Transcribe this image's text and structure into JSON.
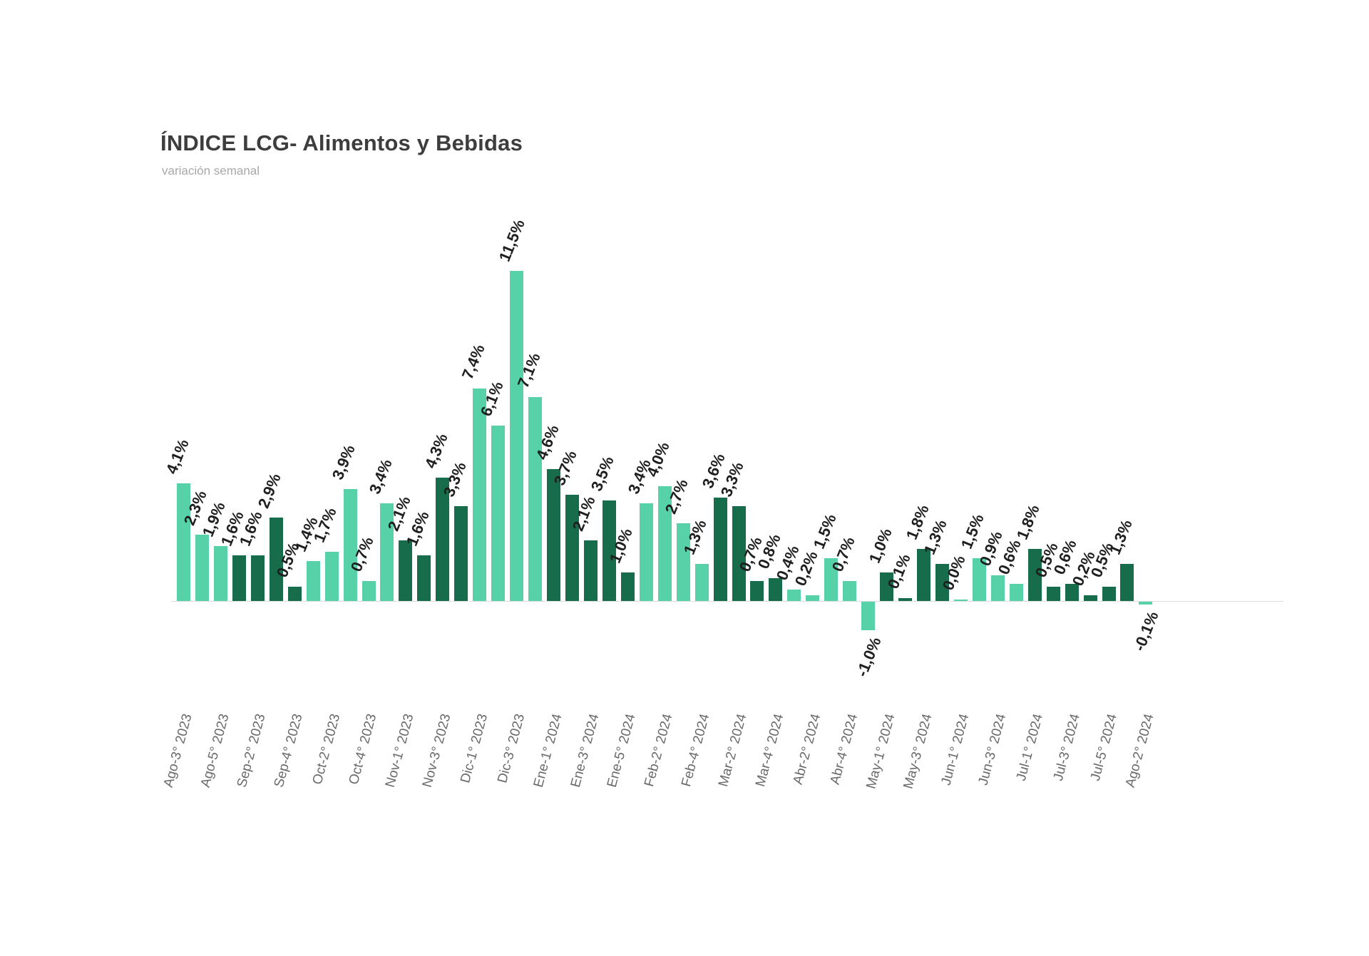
{
  "chart_data": {
    "type": "bar",
    "title": "ÍNDICE LCG- Alimentos y Bebidas",
    "subtitle": "variación semanal",
    "unit": "%",
    "ylim": [
      -1.5,
      12
    ],
    "grid": false,
    "legend_position": "none",
    "colors": {
      "light": "#57d1a7",
      "dark": "#166c4b"
    },
    "points": [
      {
        "tick": "Ago-3° 2023",
        "label": "4,1%",
        "value": 4.1,
        "series": "light"
      },
      {
        "tick": "",
        "label": "2,3%",
        "value": 2.3,
        "series": "light"
      },
      {
        "tick": "Ago-5° 2023",
        "label": "1,9%",
        "value": 1.9,
        "series": "light"
      },
      {
        "tick": "",
        "label": "1,6%",
        "value": 1.6,
        "series": "dark"
      },
      {
        "tick": "Sep-2° 2023",
        "label": "1,6%",
        "value": 1.6,
        "series": "dark"
      },
      {
        "tick": "",
        "label": "2,9%",
        "value": 2.9,
        "series": "dark"
      },
      {
        "tick": "Sep-4° 2023",
        "label": "0,5%",
        "value": 0.5,
        "series": "dark"
      },
      {
        "tick": "",
        "label": "1,4%",
        "value": 1.4,
        "series": "light"
      },
      {
        "tick": "Oct-2° 2023",
        "label": "1,7%",
        "value": 1.7,
        "series": "light"
      },
      {
        "tick": "",
        "label": "3,9%",
        "value": 3.9,
        "series": "light"
      },
      {
        "tick": "Oct-4° 2023",
        "label": "0,7%",
        "value": 0.7,
        "series": "light"
      },
      {
        "tick": "",
        "label": "3,4%",
        "value": 3.4,
        "series": "light"
      },
      {
        "tick": "Nov-1° 2023",
        "label": "2,1%",
        "value": 2.1,
        "series": "dark"
      },
      {
        "tick": "",
        "label": "1,6%",
        "value": 1.6,
        "series": "dark"
      },
      {
        "tick": "Nov-3° 2023",
        "label": "4,3%",
        "value": 4.3,
        "series": "dark"
      },
      {
        "tick": "",
        "label": "3,3%",
        "value": 3.3,
        "series": "dark"
      },
      {
        "tick": "Dic-1° 2023",
        "label": "7,4%",
        "value": 7.4,
        "series": "light"
      },
      {
        "tick": "",
        "label": "6,1%",
        "value": 6.1,
        "series": "light"
      },
      {
        "tick": "Dic-3° 2023",
        "label": "11,5%",
        "value": 11.5,
        "series": "light"
      },
      {
        "tick": "",
        "label": "7,1%",
        "value": 7.1,
        "series": "light"
      },
      {
        "tick": "Ene-1° 2024",
        "label": "4,6%",
        "value": 4.6,
        "series": "dark"
      },
      {
        "tick": "",
        "label": "3,7%",
        "value": 3.7,
        "series": "dark"
      },
      {
        "tick": "Ene-3° 2024",
        "label": "2,1%",
        "value": 2.1,
        "series": "dark"
      },
      {
        "tick": "",
        "label": "3,5%",
        "value": 3.5,
        "series": "dark"
      },
      {
        "tick": "Ene-5° 2024",
        "label": "1,0%",
        "value": 1.0,
        "series": "dark"
      },
      {
        "tick": "",
        "label": "3,4%",
        "value": 3.4,
        "series": "light"
      },
      {
        "tick": "Feb-2° 2024",
        "label": "4,0%",
        "value": 4.0,
        "series": "light"
      },
      {
        "tick": "",
        "label": "2,7%",
        "value": 2.7,
        "series": "light"
      },
      {
        "tick": "Feb-4° 2024",
        "label": "1,3%",
        "value": 1.3,
        "series": "light"
      },
      {
        "tick": "",
        "label": "3,6%",
        "value": 3.6,
        "series": "dark"
      },
      {
        "tick": "Mar-2° 2024",
        "label": "3,3%",
        "value": 3.3,
        "series": "dark"
      },
      {
        "tick": "",
        "label": "0,7%",
        "value": 0.7,
        "series": "dark"
      },
      {
        "tick": "Mar-4° 2024",
        "label": "0,8%",
        "value": 0.8,
        "series": "dark"
      },
      {
        "tick": "",
        "label": "0,4%",
        "value": 0.4,
        "series": "light"
      },
      {
        "tick": "Abr-2° 2024",
        "label": "0,2%",
        "value": 0.2,
        "series": "light"
      },
      {
        "tick": "",
        "label": "1,5%",
        "value": 1.5,
        "series": "light"
      },
      {
        "tick": "Abr-4° 2024",
        "label": "0,7%",
        "value": 0.7,
        "series": "light"
      },
      {
        "tick": "",
        "label": "-1,0%",
        "value": -1.0,
        "series": "light"
      },
      {
        "tick": "May-1° 2024",
        "label": "1,0%",
        "value": 1.0,
        "series": "dark"
      },
      {
        "tick": "",
        "label": "0,1%",
        "value": 0.1,
        "series": "dark"
      },
      {
        "tick": "May-3° 2024",
        "label": "1,8%",
        "value": 1.8,
        "series": "dark"
      },
      {
        "tick": "",
        "label": "1,3%",
        "value": 1.3,
        "series": "dark"
      },
      {
        "tick": "Jun-1° 2024",
        "label": "0,0%",
        "value": 0.0,
        "series": "light"
      },
      {
        "tick": "",
        "label": "1,5%",
        "value": 1.5,
        "series": "light"
      },
      {
        "tick": "Jun-3° 2024",
        "label": "0,9%",
        "value": 0.9,
        "series": "light"
      },
      {
        "tick": "",
        "label": "0,6%",
        "value": 0.6,
        "series": "light"
      },
      {
        "tick": "Jul-1° 2024",
        "label": "1,8%",
        "value": 1.8,
        "series": "dark"
      },
      {
        "tick": "",
        "label": "0,5%",
        "value": 0.5,
        "series": "dark"
      },
      {
        "tick": "Jul-3° 2024",
        "label": "0,6%",
        "value": 0.6,
        "series": "dark"
      },
      {
        "tick": "",
        "label": "0,2%",
        "value": 0.2,
        "series": "dark"
      },
      {
        "tick": "Jul-5° 2024",
        "label": "0,5%",
        "value": 0.5,
        "series": "dark"
      },
      {
        "tick": "",
        "label": "1,3%",
        "value": 1.3,
        "series": "dark"
      },
      {
        "tick": "Ago-2° 2024",
        "label": "-0,1%",
        "value": -0.1,
        "series": "light"
      }
    ]
  }
}
